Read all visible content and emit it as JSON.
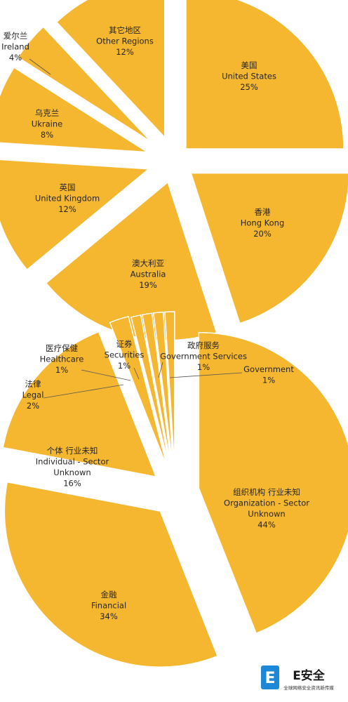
{
  "chart_data": [
    {
      "type": "pie",
      "title": "",
      "exploded": true,
      "color": "#F5B630",
      "slices": [
        {
          "name_cn": "美国",
          "name_en": "United States",
          "value": 25,
          "value_label": "25%"
        },
        {
          "name_cn": "香港",
          "name_en": "Hong Kong",
          "value": 20,
          "value_label": "20%"
        },
        {
          "name_cn": "澳大利亚",
          "name_en": "Australia",
          "value": 19,
          "value_label": "19%"
        },
        {
          "name_cn": "英国",
          "name_en": "United Kingdom",
          "value": 12,
          "value_label": "12%"
        },
        {
          "name_cn": "乌克兰",
          "name_en": "Ukraine",
          "value": 8,
          "value_label": "8%"
        },
        {
          "name_cn": "爱尔兰",
          "name_en": "Ireland",
          "value": 4,
          "value_label": "4%"
        },
        {
          "name_cn": "其它地区",
          "name_en": "Other Regions",
          "value": 12,
          "value_label": "12%"
        }
      ]
    },
    {
      "type": "pie",
      "title": "",
      "exploded": true,
      "color": "#F5B630",
      "slices": [
        {
          "name_cn": "组织机构  行业未知",
          "name_en": "Organization - Sector",
          "name_en2": "Unknown",
          "value": 44,
          "value_label": "44%"
        },
        {
          "name_cn": "金融",
          "name_en": "Financial",
          "value": 34,
          "value_label": "34%"
        },
        {
          "name_cn": "个体  行业未知",
          "name_en": "Individual - Sector",
          "name_en2": "Unknown",
          "value": 16,
          "value_label": "16%"
        },
        {
          "name_cn": "法律",
          "name_en": "Legal",
          "value": 2,
          "value_label": "2%"
        },
        {
          "name_cn": "医疗保健",
          "name_en": "Healthcare",
          "value": 1,
          "value_label": "1%"
        },
        {
          "name_cn": "证券",
          "name_en": "Securities",
          "value": 1,
          "value_label": "1%"
        },
        {
          "name_cn": "政府服务",
          "name_en": "Government  Services",
          "value": 1,
          "value_label": "1%"
        },
        {
          "name_cn": "",
          "name_en": "Government",
          "value": 1,
          "value_label": "1%"
        }
      ]
    }
  ],
  "watermark": {
    "logo_letter": "E",
    "brand": "E安全",
    "tagline": "全球网络安全资讯新传媒",
    "color": "#1e88d8"
  }
}
